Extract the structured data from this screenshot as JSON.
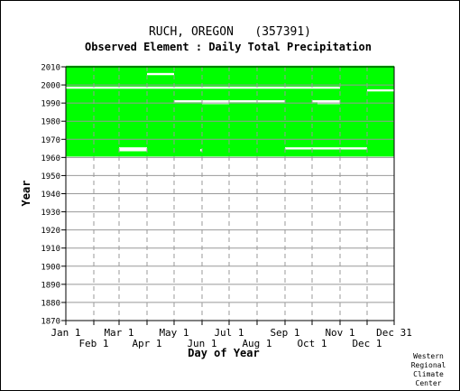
{
  "chart_data": {
    "type": "heatmap",
    "title": "RUCH, OREGON   (357391)",
    "subtitle": "Observed Element : Daily Total Precipitation",
    "xlabel": "Day of Year",
    "ylabel": "Year",
    "colors": {
      "observed": "#00ff00",
      "missing": "#ffffff",
      "grid": "#999999",
      "axis": "#000000"
    },
    "x_ticks_upper": [
      "Jan 1",
      "Mar 1",
      "May 1",
      "Jul 1",
      "Sep 1",
      "Nov 1",
      "Dec 31"
    ],
    "x_ticks_lower": [
      "Feb 1",
      "Apr 1",
      "Jun 1",
      "Aug 1",
      "Oct 1",
      "Dec 1"
    ],
    "x_tick_days_upper": [
      1,
      60,
      121,
      182,
      244,
      305,
      365
    ],
    "x_tick_days_lower": [
      32,
      91,
      152,
      213,
      274,
      335
    ],
    "y_ticks": [
      2010,
      2000,
      1990,
      1980,
      1970,
      1960,
      1950,
      1940,
      1930,
      1920,
      1910,
      1900,
      1890,
      1880,
      1870
    ],
    "ylim": [
      1870,
      2010
    ],
    "xlim": [
      1,
      365
    ],
    "observed_period": {
      "start_year": 1961,
      "end_year": 2010
    },
    "missing_segments": [
      {
        "year": 1998.5,
        "start_day": 1,
        "end_day": 305
      },
      {
        "year": 1997,
        "start_day": 335,
        "end_day": 365
      },
      {
        "year": 2006,
        "start_day": 91,
        "end_day": 121
      },
      {
        "year": 1991,
        "start_day": 121,
        "end_day": 182
      },
      {
        "year": 1990,
        "start_day": 152,
        "end_day": 182
      },
      {
        "year": 1991,
        "start_day": 182,
        "end_day": 244
      },
      {
        "year": 1991,
        "start_day": 274,
        "end_day": 305
      },
      {
        "year": 1990,
        "start_day": 280,
        "end_day": 305
      },
      {
        "year": 1965,
        "start_day": 60,
        "end_day": 91
      },
      {
        "year": 1964,
        "start_day": 60,
        "end_day": 91
      },
      {
        "year": 1965,
        "start_day": 244,
        "end_day": 335
      },
      {
        "year": 1964,
        "start_day": 150,
        "end_day": 152
      }
    ],
    "grid": true
  },
  "credit": [
    "Western",
    "Regional",
    "Climate",
    "Center"
  ]
}
